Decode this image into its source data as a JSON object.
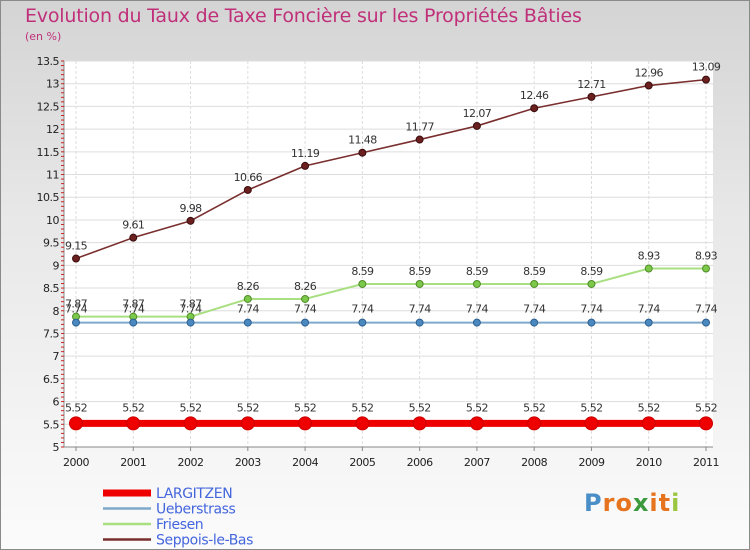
{
  "title": "Evolution du Taux de Taxe Foncière sur les Propriétés Bâties",
  "subtitle": "(en %)",
  "brand": {
    "letters": [
      "P",
      "r",
      "o",
      "x",
      "i",
      "t",
      "i"
    ],
    "colors": [
      "#4a8ec8",
      "#e6731e",
      "#e6731e",
      "#3c9a3c",
      "#e6731e",
      "#e6731e",
      "#9ac640"
    ]
  },
  "chart_data": {
    "type": "line",
    "title": "Evolution du Taux de Taxe Foncière sur les Propriétés Bâties",
    "ylabel": "(en %)",
    "xlabel": "",
    "categories": [
      "2000",
      "2001",
      "2002",
      "2003",
      "2004",
      "2005",
      "2006",
      "2007",
      "2008",
      "2009",
      "2010",
      "2011"
    ],
    "ylim": [
      5,
      13.5
    ],
    "yticks": [
      "5",
      "5.5",
      "6",
      "6.5",
      "7",
      "7.5",
      "8",
      "8.5",
      "9",
      "9.5",
      "10",
      "10.5",
      "11",
      "11.5",
      "12",
      "12.5",
      "13",
      "13.5"
    ],
    "legend_position": "bottom-left",
    "series": [
      {
        "name": "LARGITZEN",
        "color": "#ee0000",
        "values": [
          5.52,
          5.52,
          5.52,
          5.52,
          5.52,
          5.52,
          5.52,
          5.52,
          5.52,
          5.52,
          5.52,
          5.52
        ],
        "labels": [
          "5.52",
          "5.52",
          "5.52",
          "5.52",
          "5.52",
          "5.52",
          "5.52",
          "5.52",
          "5.52",
          "5.52",
          "5.52",
          "5.52"
        ]
      },
      {
        "name": "Ueberstrass",
        "color": "#7fa9cc",
        "values": [
          7.74,
          7.74,
          7.74,
          7.74,
          7.74,
          7.74,
          7.74,
          7.74,
          7.74,
          7.74,
          7.74,
          7.74
        ],
        "labels": [
          "7.74",
          "7.74",
          "7.74",
          "7.74",
          "7.74",
          "7.74",
          "7.74",
          "7.74",
          "7.74",
          "7.74",
          "7.74",
          "7.74"
        ]
      },
      {
        "name": "Friesen",
        "color": "#a8df80",
        "values": [
          7.87,
          7.87,
          7.87,
          8.26,
          8.26,
          8.59,
          8.59,
          8.59,
          8.59,
          8.59,
          8.93,
          8.93
        ],
        "labels": [
          "7.87",
          "7.87",
          "7.87",
          "8.26",
          "8.26",
          "8.59",
          "8.59",
          "8.59",
          "8.59",
          "8.59",
          "8.93",
          "8.93"
        ]
      },
      {
        "name": "Seppois-le-Bas",
        "color": "#7a2e2e",
        "values": [
          9.15,
          9.61,
          9.98,
          10.66,
          11.19,
          11.48,
          11.77,
          12.07,
          12.46,
          12.71,
          12.96,
          13.09
        ],
        "labels": [
          "9.15",
          "9.61",
          "9.98",
          "10.66",
          "11.19",
          "11.48",
          "11.77",
          "12.07",
          "12.46",
          "12.71",
          "12.96",
          "13.09"
        ]
      }
    ]
  }
}
